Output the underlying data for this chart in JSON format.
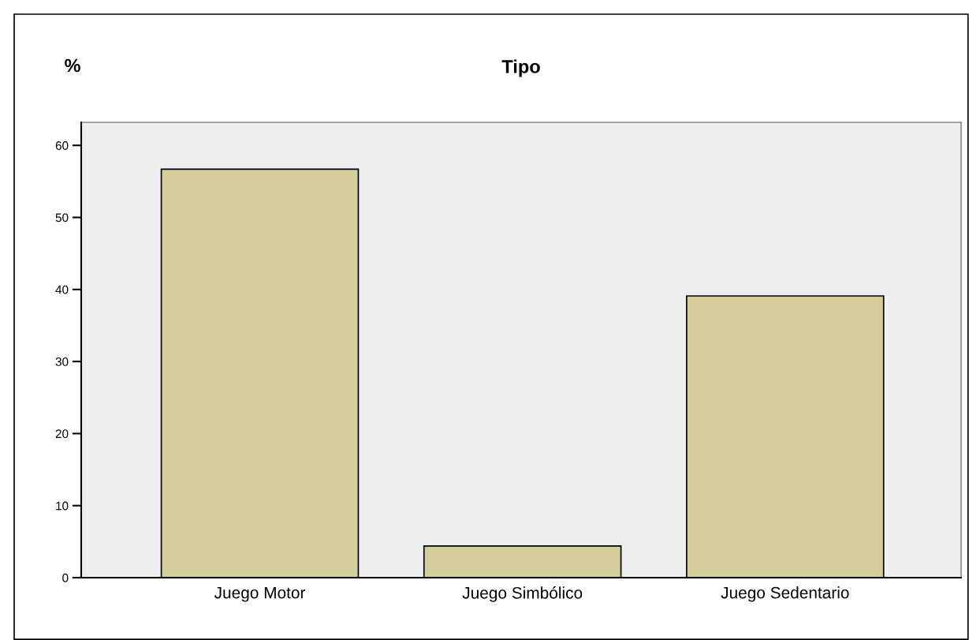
{
  "chart_data": {
    "type": "bar",
    "title": "Tipo",
    "ylabel": "%",
    "categories": [
      "Juego Motor",
      "Juego Simbólico",
      "Juego Sedentario"
    ],
    "values": [
      56.7,
      4.4,
      39.1
    ],
    "color": "#d3ce99",
    "ylim": [
      0,
      63.2
    ],
    "yticks": [
      0,
      10,
      20,
      30,
      40,
      50,
      60
    ],
    "grid": false,
    "legend": false
  }
}
